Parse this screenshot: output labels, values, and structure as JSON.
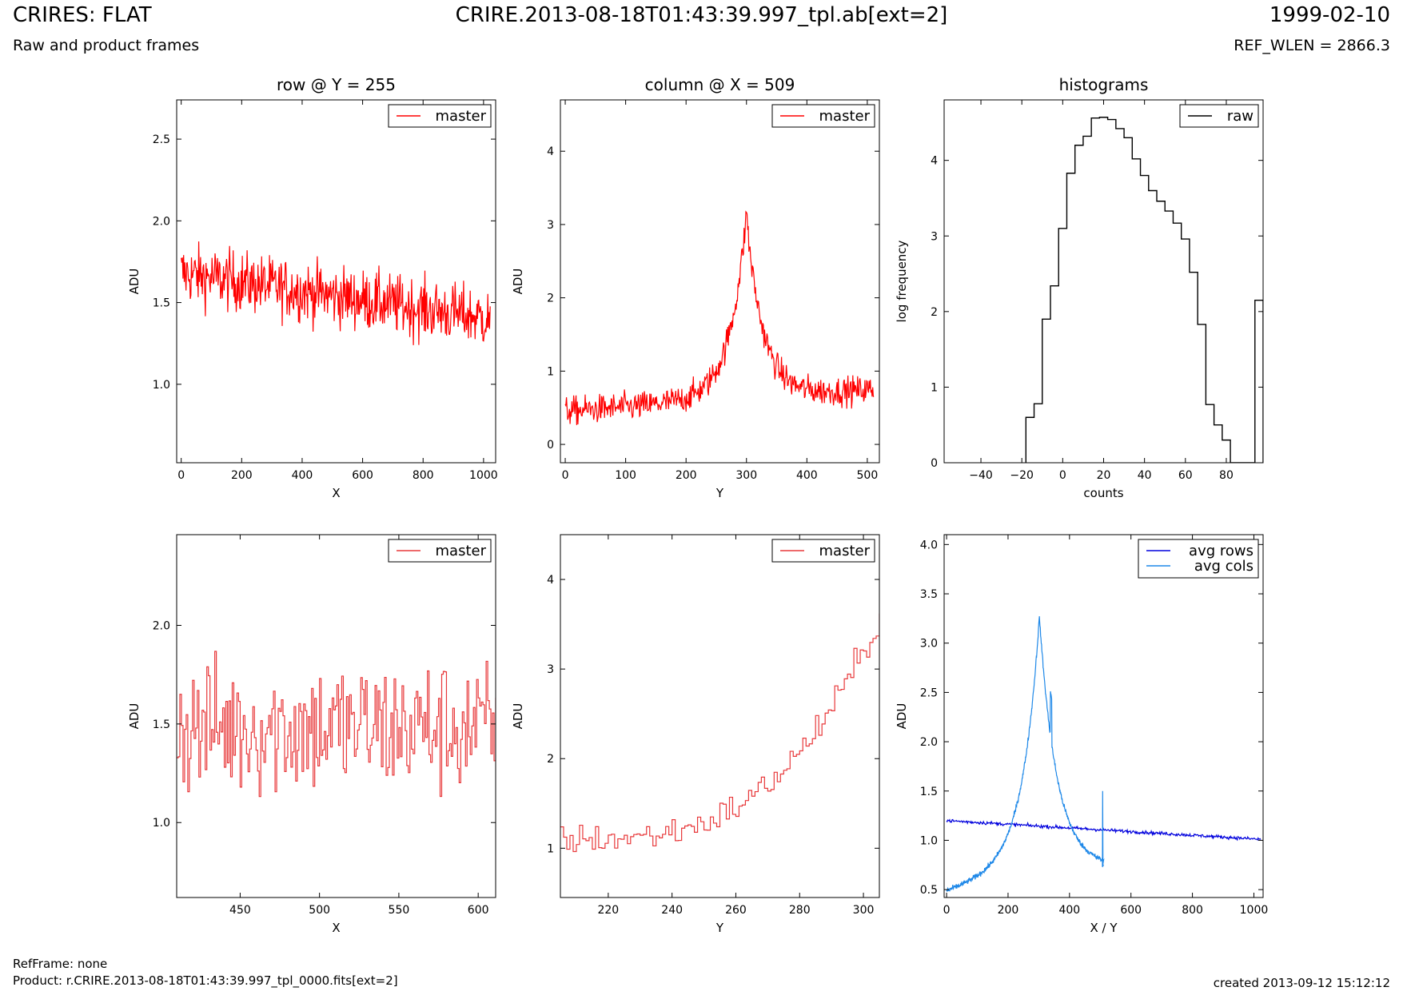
{
  "header": {
    "title": "CRIRES: FLAT",
    "subtitle": "Raw and product frames",
    "file": "CRIRE.2013-08-18T01:43:39.997_tpl.ab[ext=2]",
    "date": "1999-02-10",
    "ref_wlen": "REF_WLEN = 2866.3"
  },
  "footer": {
    "refframe": "RefFrame: none",
    "product": "Product: r.CRIRE.2013-08-18T01:43:39.997_tpl_0000.fits[ext=2]",
    "created": "created 2013-09-12 15:12:12"
  },
  "colors": {
    "master": "#ff0000",
    "master_zoom": "#e8383a",
    "raw": "#000000",
    "avg_rows": "#0000dd",
    "avg_cols": "#1e88e8"
  },
  "chart_data": [
    {
      "type": "line",
      "title": "row @ Y = 255",
      "xlabel": "X",
      "ylabel": "ADU",
      "xlim": [
        -15,
        1040
      ],
      "ylim": [
        0.52,
        2.74
      ],
      "xticks": [
        0,
        200,
        400,
        600,
        800,
        1000
      ],
      "yticks": [
        1.0,
        1.5,
        2.0,
        2.5
      ],
      "legend": "top-right",
      "series": [
        {
          "name": "master",
          "color": "#ff0000",
          "x_range": [
            0,
            1023
          ],
          "noise_mean_start": 1.68,
          "noise_mean_end": 1.4,
          "noise_amplitude": 0.22
        }
      ]
    },
    {
      "type": "line",
      "title": "column @ X = 509",
      "xlabel": "Y",
      "ylabel": "ADU",
      "xlim": [
        -8,
        520
      ],
      "ylim": [
        -0.25,
        4.7
      ],
      "xticks": [
        0,
        100,
        200,
        300,
        400,
        500
      ],
      "yticks": [
        0,
        1,
        2,
        3,
        4
      ],
      "legend": "top-right",
      "series": [
        {
          "name": "master",
          "color": "#ff0000",
          "x_range": [
            0,
            511
          ],
          "peak_x": 302,
          "peak_y": 3.6,
          "baseline_start": 0.45,
          "baseline_end": 0.75
        }
      ]
    },
    {
      "type": "step",
      "title": "histograms",
      "xlabel": "counts",
      "ylabel": "log frequency",
      "xlim": [
        -58,
        98
      ],
      "ylim": [
        0,
        4.8
      ],
      "xticks": [
        -40,
        -20,
        0,
        20,
        40,
        60,
        80
      ],
      "yticks": [
        0,
        1,
        2,
        3,
        4
      ],
      "legend": "top-right",
      "series": [
        {
          "name": "raw",
          "color": "#000000",
          "bin_edges": [
            -18,
            -14,
            -10,
            -6,
            -2,
            2,
            6,
            10,
            14,
            18,
            22,
            26,
            30,
            34,
            38,
            42,
            46,
            50,
            54,
            58,
            62,
            66,
            70,
            74,
            78,
            82,
            86,
            90,
            94,
            98
          ],
          "values": [
            0.6,
            0.78,
            1.9,
            2.34,
            3.1,
            3.83,
            4.2,
            4.32,
            4.56,
            4.57,
            4.54,
            4.42,
            4.3,
            4.02,
            3.8,
            3.6,
            3.46,
            3.33,
            3.17,
            2.96,
            2.52,
            1.83,
            0.77,
            0.5,
            0.3,
            0,
            0,
            0,
            2.15
          ]
        }
      ]
    },
    {
      "type": "line",
      "title": "",
      "xlabel": "X",
      "ylabel": "ADU",
      "xlim": [
        410,
        611
      ],
      "ylim": [
        0.62,
        2.46
      ],
      "xticks": [
        450,
        500,
        550,
        600
      ],
      "yticks": [
        1.0,
        1.5,
        2.0
      ],
      "legend": "top-right",
      "series": [
        {
          "name": "master",
          "color": "#e8383a",
          "x_range": [
            410,
            611
          ],
          "noise_mean": 1.48,
          "noise_amplitude": 0.25
        }
      ]
    },
    {
      "type": "line",
      "title": "",
      "xlabel": "Y",
      "ylabel": "ADU",
      "xlim": [
        205,
        305
      ],
      "ylim": [
        0.45,
        4.5
      ],
      "xticks": [
        220,
        240,
        260,
        280,
        300
      ],
      "yticks": [
        1,
        2,
        3,
        4
      ],
      "legend": "top-right",
      "series": [
        {
          "name": "master",
          "color": "#e8383a",
          "x_range": [
            205,
            305
          ],
          "start_y": 1.1,
          "end_y": 3.6
        }
      ]
    },
    {
      "type": "line",
      "title": "",
      "xlabel": "X / Y",
      "ylabel": "ADU",
      "xlim": [
        -8,
        1030
      ],
      "ylim": [
        0.42,
        4.1
      ],
      "xticks": [
        0,
        200,
        400,
        600,
        800,
        1000
      ],
      "yticks": [
        0.5,
        1.0,
        1.5,
        2.0,
        2.5,
        3.0,
        3.5,
        4.0
      ],
      "legend": "top-right",
      "series": [
        {
          "name": "avg rows",
          "color": "#0000dd",
          "x_range": [
            0,
            1023
          ],
          "start_y": 1.2,
          "end_y": 1.01
        },
        {
          "name": "avg cols",
          "color": "#1e88e8",
          "x_range": [
            0,
            511
          ],
          "start_y": 0.48,
          "peak_x": 302,
          "peak_y": 3.27,
          "end_y": 0.74
        }
      ]
    }
  ]
}
